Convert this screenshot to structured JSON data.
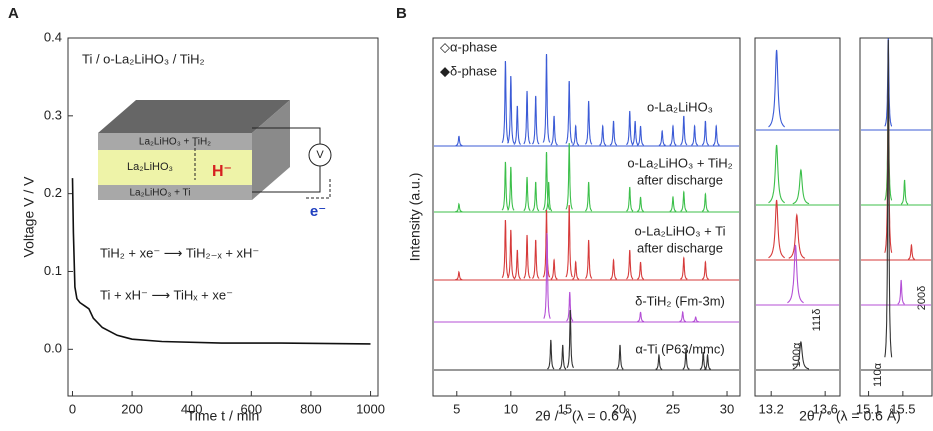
{
  "chart_data": [
    {
      "type": "line",
      "label": "A",
      "xlabel": "Time t / min",
      "ylabel": "Voltage V / V",
      "annotations": [
        "Ti / o-La₂LiHO₃ / TiH₂",
        "TiH₂ + xe⁻ ⟶ TiH₂₋ₓ + xH⁻",
        "Ti + xH⁻ ⟶ TiHₓ + xe⁻"
      ],
      "diagram": [
        "La₂LiHO₃ + TiH₂",
        "La₂LiHO₃",
        "La₂LiHO₃ + Ti",
        "H⁻",
        "V",
        "e⁻"
      ],
      "xlim": [
        -15,
        1025
      ],
      "xticks": [
        0,
        200,
        400,
        600,
        800,
        1000
      ],
      "ylim": [
        -0.06,
        0.4
      ],
      "yticks": [
        {
          "value": 0,
          "label": "0.0"
        },
        0.1,
        0.2,
        0.3,
        0.4
      ],
      "series": [
        {
          "name": "Voltage",
          "color": "#111",
          "x": [
            0,
            3,
            8,
            15,
            25,
            40,
            55,
            70,
            100,
            150,
            200,
            300,
            500,
            700,
            1000
          ],
          "values": [
            0.22,
            0.15,
            0.08,
            0.065,
            0.06,
            0.056,
            0.052,
            0.04,
            0.028,
            0.018,
            0.013,
            0.01,
            0.008,
            0.008,
            0.007
          ]
        }
      ]
    },
    {
      "type": "spectrum",
      "label": "B",
      "xlabel": "2θ / ° (λ = 0.6 Å)",
      "ylabel": "Intensity (a.u.)",
      "legend": [
        "◇α-phase",
        "◆δ-phase"
      ],
      "xlim": [
        2.8,
        31.2
      ],
      "xticks": [
        5,
        10,
        15,
        20,
        25,
        30
      ],
      "series": [
        {
          "name": "o-La₂LiHO₃",
          "color": "#3b5bd6",
          "x": [
            5.2,
            9.5,
            10.0,
            10.6,
            11.5,
            12.3,
            13.3,
            14.0,
            15.4,
            16.0,
            17.2,
            18.5,
            19.5,
            21.0,
            21.5,
            22.0,
            24.0,
            25.0,
            26.0,
            27.0,
            28.0,
            29.0
          ],
          "values": [
            10,
            85,
            70,
            40,
            55,
            50,
            92,
            30,
            65,
            20,
            45,
            20,
            25,
            35,
            25,
            20,
            15,
            20,
            30,
            20,
            25,
            20
          ]
        },
        {
          "name": "o-La₂LiHO₃ + TiH₂",
          "condition": "after discharge",
          "color": "#3cbf4a",
          "x": [
            5.2,
            9.5,
            10.0,
            11.5,
            12.3,
            13.3,
            13.5,
            15.4,
            17.2,
            21.0,
            22.0,
            25.0,
            26.0,
            28.0
          ],
          "values": [
            8,
            50,
            45,
            35,
            30,
            60,
            30,
            69,
            30,
            25,
            15,
            15,
            20,
            18
          ]
        },
        {
          "name": "o-La₂LiHO₃ + Ti",
          "condition": "after discharge",
          "color": "#d63a3a",
          "x": [
            5.2,
            9.5,
            10.0,
            10.6,
            11.5,
            12.3,
            13.3,
            14.0,
            15.4,
            16.0,
            17.2,
            19.5,
            21.0,
            22.0,
            26.0,
            28.0
          ],
          "values": [
            8,
            60,
            50,
            30,
            45,
            40,
            70,
            20,
            75,
            18,
            40,
            20,
            30,
            18,
            22,
            18
          ]
        },
        {
          "name": "δ-TiH₂ (Fm-3m)",
          "color": "#b44fd6",
          "x": [
            13.35,
            15.45,
            22.0,
            25.9,
            27.1
          ],
          "values": [
            89,
            30,
            10,
            10,
            5
          ]
        },
        {
          "name": "α-Ti (P63/mmc)",
          "color": "#333",
          "x": [
            13.7,
            14.8,
            15.5,
            20.1,
            23.7,
            26.2,
            27.8,
            28.2
          ],
          "values": [
            30,
            25,
            60,
            25,
            15,
            20,
            18,
            15
          ]
        }
      ]
    },
    {
      "type": "spectrum",
      "annotations": [
        "111δ",
        "100α"
      ],
      "xlabel": "2θ / ° (λ = 0.6 Å)",
      "xlim": [
        13.08,
        13.71
      ],
      "xticks": [
        13.2,
        13.6
      ],
      "series": [
        {
          "color": "#3b5bd6",
          "x": [
            13.24
          ],
          "values": [
            80
          ]
        },
        {
          "color": "#3cbf4a",
          "x": [
            13.24,
            13.42
          ],
          "values": [
            60,
            35
          ]
        },
        {
          "color": "#d63a3a",
          "x": [
            13.24,
            13.39
          ],
          "values": [
            60,
            45
          ]
        },
        {
          "color": "#b44fd6",
          "x": [
            13.38
          ],
          "values": [
            60
          ]
        },
        {
          "color": "#333",
          "x": [
            13.42
          ],
          "values": [
            28
          ]
        }
      ]
    },
    {
      "type": "spectrum",
      "annotations": [
        "200δ",
        "110α"
      ],
      "xlim": [
        15.0,
        15.84
      ],
      "xticks": [
        15.1,
        15.5
      ],
      "series": [
        {
          "color": "#3b5bd6",
          "x": [
            15.33
          ],
          "values": [
            95
          ]
        },
        {
          "color": "#3cbf4a",
          "x": [
            15.33,
            15.52
          ],
          "values": [
            120,
            25
          ]
        },
        {
          "color": "#d63a3a",
          "x": [
            15.33,
            15.6
          ],
          "values": [
            190,
            15
          ]
        },
        {
          "color": "#b44fd6",
          "x": [
            15.48
          ],
          "values": [
            25
          ]
        },
        {
          "color": "#333",
          "x": [
            15.33
          ],
          "values": [
            330
          ]
        }
      ]
    }
  ]
}
